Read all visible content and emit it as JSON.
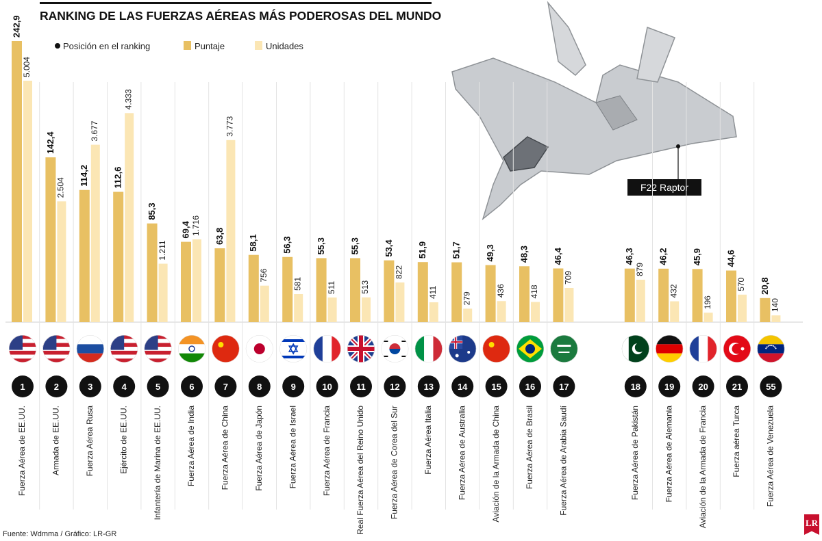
{
  "title": "RANKING DE LAS FUERZAS AÉREAS MÁS PODEROSAS DEL MUNDO",
  "legend": {
    "rank": "Posición en el ranking",
    "score": "Puntaje",
    "units": "Unidades"
  },
  "plane_label": "F22 Raptor",
  "source": "Fuente: Wdmma / Gráfico: LR-GR",
  "logo": "LR",
  "colors": {
    "score": "#e8c063",
    "units": "#fbe6b4",
    "rank_circle": "#111111",
    "axis": "#cfcfcf"
  },
  "chart_data": {
    "type": "bar",
    "title": "RANKING DE LAS FUERZAS AÉREAS MÁS PODEROSAS DEL MUNDO",
    "xlabel": "",
    "ylabel": "",
    "ylim_score": [
      0,
      242.9
    ],
    "ylim_units": [
      0,
      5004
    ],
    "categories": [
      "Fuerza Aérea de EE.UU.",
      "Armada de EE.UU.",
      "Fuerza Aérea Rusa",
      "Ejército de EE.UU.",
      "Infantería de Marina de EE.UU.",
      "Fuerza Aérea de India",
      "Fuerza Aérea de China",
      "Fuerza Aérea de Japón",
      "Fuerza Aérea de Israel",
      "Fuerza Aérea de Francia",
      "Real Fuerza Aérea del Reino Unido",
      "Fuerza Aérea de Corea del Sur",
      "Fuerza Aérea Italia",
      "Fuerza Aérea de Australia",
      "Aviación de la Armada de China",
      "Fuerza Aérea de Brasil",
      "Fuerza Aérea de Arabia Saudí",
      "Fuerza Aérea de Pakistán",
      "Fuerza Aérea de Alemania",
      "Aviación de la Armada de Francia",
      "Fuerza aérea Turca",
      "Fuerza Aérea de Venezuela"
    ],
    "ranks": [
      "1",
      "2",
      "3",
      "4",
      "5",
      "6",
      "7",
      "8",
      "9",
      "10",
      "11",
      "12",
      "13",
      "14",
      "15",
      "16",
      "17",
      "18",
      "19",
      "20",
      "21",
      "55"
    ],
    "flags": [
      "us",
      "us",
      "ru",
      "us",
      "us",
      "in",
      "cn",
      "jp",
      "il",
      "fr",
      "gb",
      "kr",
      "it",
      "au",
      "cn",
      "br",
      "sa",
      "pk",
      "de",
      "fr",
      "tr",
      "ve"
    ],
    "series": [
      {
        "name": "Puntaje",
        "values": [
          242.9,
          142.4,
          114.2,
          112.6,
          85.3,
          69.4,
          63.8,
          58.1,
          56.3,
          55.3,
          55.3,
          53.4,
          51.9,
          51.7,
          49.3,
          48.3,
          46.4,
          46.3,
          46.2,
          45.9,
          44.6,
          20.8
        ],
        "labels": [
          "242,9",
          "142,4",
          "114,2",
          "112,6",
          "85,3",
          "69,4",
          "63,8",
          "58,1",
          "56,3",
          "55,3",
          "55,3",
          "53,4",
          "51,9",
          "51,7",
          "49,3",
          "48,3",
          "46,4",
          "46,3",
          "46,2",
          "45,9",
          "44,6",
          "20,8"
        ]
      },
      {
        "name": "Unidades",
        "values": [
          5004,
          2504,
          3677,
          4333,
          1211,
          1716,
          3773,
          756,
          581,
          511,
          513,
          822,
          411,
          279,
          436,
          418,
          709,
          879,
          432,
          196,
          570,
          140
        ],
        "labels": [
          "5.004",
          "2.504",
          "3.677",
          "4.333",
          "1.211",
          "1.716",
          "3.773",
          "756",
          "581",
          "511",
          "513",
          "822",
          "411",
          "279",
          "436",
          "418",
          "709",
          "879",
          "432",
          "196",
          "570",
          "140"
        ]
      }
    ]
  }
}
